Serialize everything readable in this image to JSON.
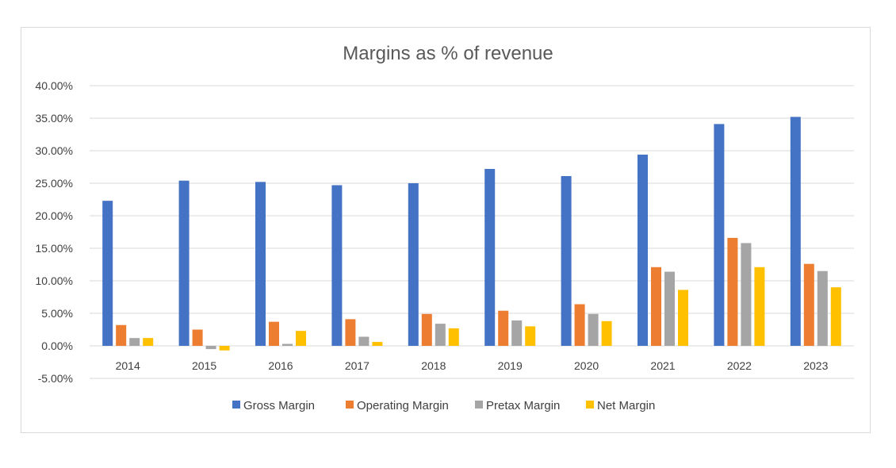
{
  "chart_data": {
    "type": "bar",
    "title": "Margins as % of revenue",
    "xlabel": "",
    "ylabel": "",
    "ylim": [
      -5,
      40
    ],
    "ytick_values": [
      -5,
      0,
      5,
      10,
      15,
      20,
      25,
      30,
      35,
      40
    ],
    "ytick_labels": [
      "-5.00%",
      "0.00%",
      "5.00%",
      "10.00%",
      "15.00%",
      "20.00%",
      "25.00%",
      "30.00%",
      "35.00%",
      "40.00%"
    ],
    "grid": true,
    "legend_position": "bottom",
    "categories": [
      "2014",
      "2015",
      "2016",
      "2017",
      "2018",
      "2019",
      "2020",
      "2021",
      "2022",
      "2023"
    ],
    "series": [
      {
        "name": "Gross Margin",
        "color": "#4472c4",
        "values": [
          22.3,
          25.4,
          25.2,
          24.7,
          25.0,
          27.2,
          26.1,
          29.4,
          34.1,
          35.2
        ]
      },
      {
        "name": "Operating Margin",
        "color": "#ed7d31",
        "values": [
          3.2,
          2.5,
          3.7,
          4.1,
          4.9,
          5.4,
          6.4,
          12.1,
          16.6,
          12.6
        ]
      },
      {
        "name": "Pretax Margin",
        "color": "#a5a5a5",
        "values": [
          1.2,
          -0.5,
          0.3,
          1.4,
          3.4,
          3.9,
          4.9,
          11.4,
          15.8,
          11.5
        ]
      },
      {
        "name": "Net Margin",
        "color": "#ffc000",
        "values": [
          1.2,
          -0.7,
          2.3,
          0.6,
          2.7,
          3.0,
          3.8,
          8.6,
          12.1,
          9.0
        ]
      }
    ]
  }
}
